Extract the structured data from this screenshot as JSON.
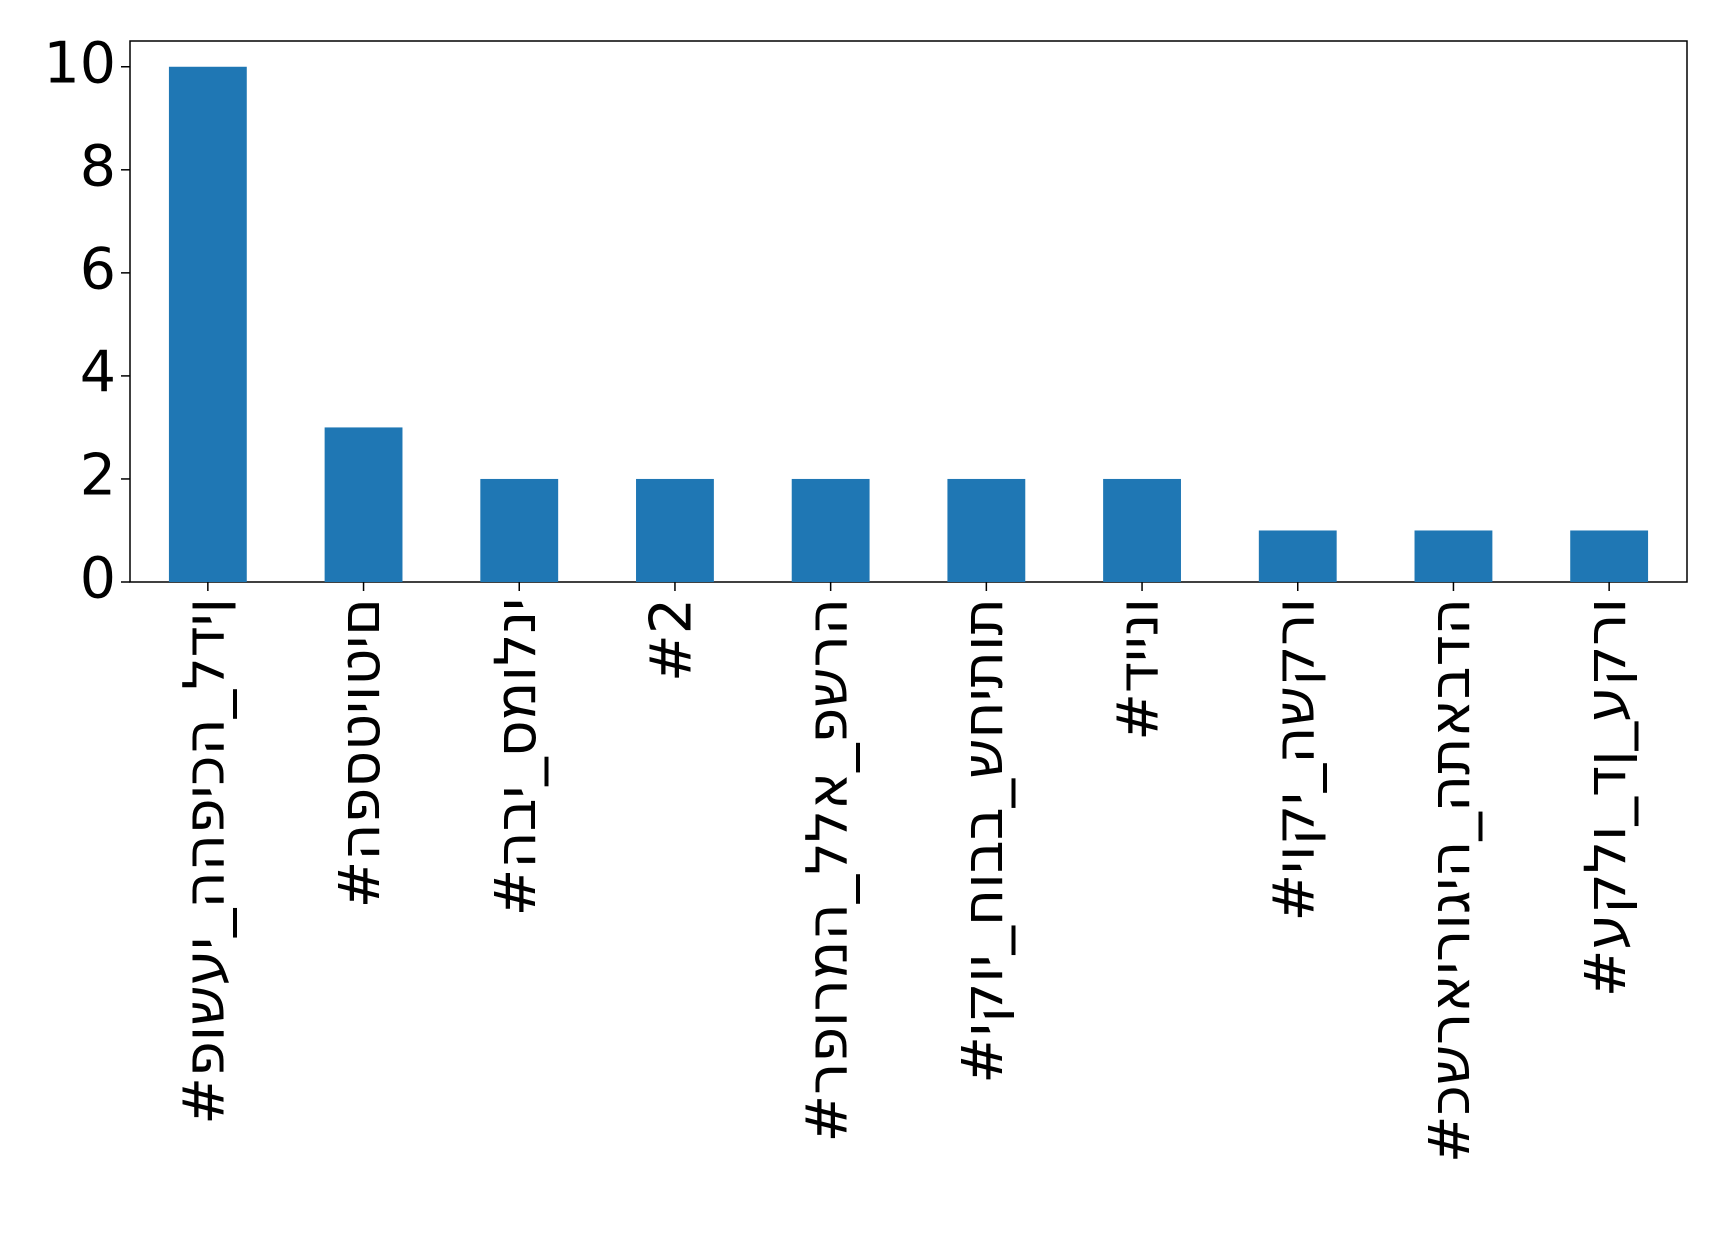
{
  "chart_data": {
    "type": "bar",
    "categories": [
      "#פושעי_ההפיכה_לדין",
      "#הפסטיוטים",
      "#הבי_סמולני",
      "#2",
      "#רפורמה_ללא_פשרה",
      "#יקוי_חובב_שחיתות",
      "#דיינו",
      "#יוקי_השקרו",
      "#כשראירוגיה_התאבדה",
      "#עקלו_דן_עקרו"
    ],
    "values": [
      10,
      3,
      2,
      2,
      2,
      2,
      2,
      1,
      1,
      1
    ],
    "color": "#1f77b4",
    "ylim": [
      0,
      10.5
    ],
    "yticks": [
      0,
      2,
      4,
      6,
      8,
      10
    ],
    "grid": false
  }
}
